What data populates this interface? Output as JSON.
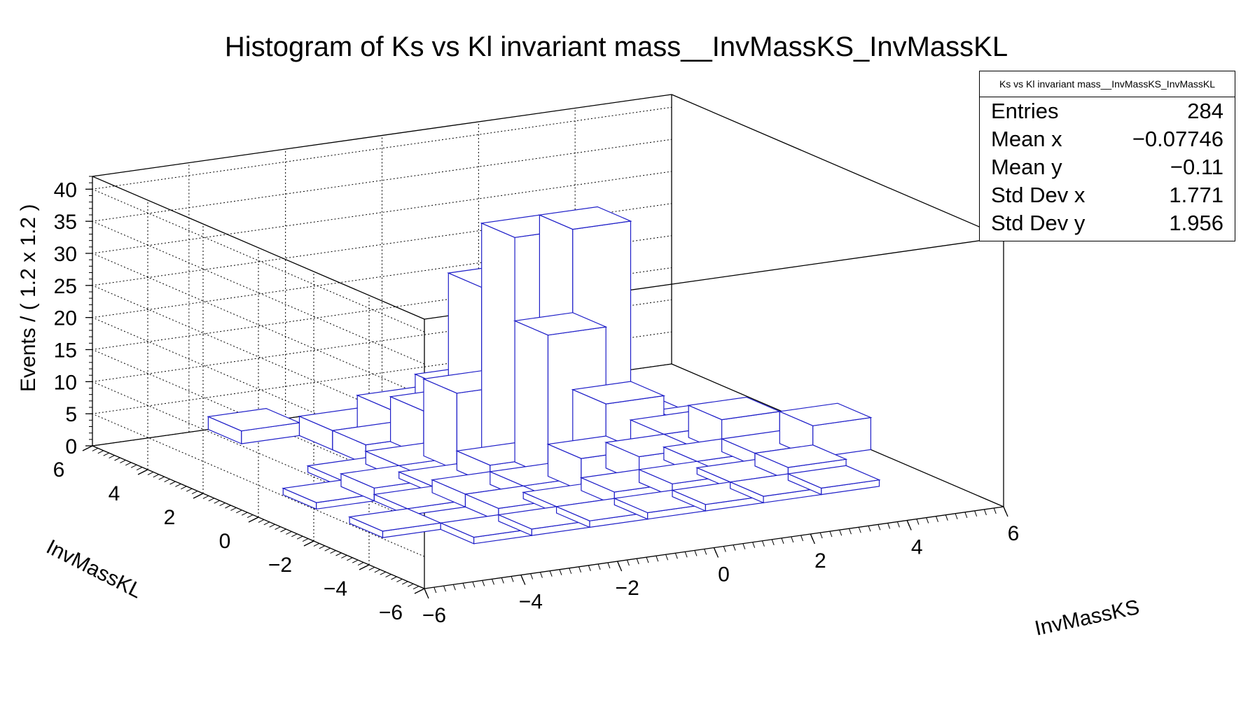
{
  "chart_data": {
    "type": "lego2d",
    "title": "Histogram of Ks vs Kl invariant mass__InvMassKS_InvMassKL",
    "xlabel": "InvMassKS",
    "ylabel": "InvMassKL",
    "zlabel": "Events / ( 1.2 x 1.2 )",
    "xlim": [
      -6,
      6
    ],
    "ylim": [
      -6,
      6
    ],
    "zlim": [
      0,
      42
    ],
    "x_ticks": [
      "−6",
      "−4",
      "−2",
      "0",
      "2",
      "4",
      "6"
    ],
    "y_ticks": [
      "−6",
      "−4",
      "−2",
      "0",
      "2",
      "4",
      "6"
    ],
    "z_ticks": [
      "0",
      "5",
      "10",
      "15",
      "20",
      "25",
      "30",
      "35",
      "40"
    ],
    "x_bin_edges": [
      -6,
      -4.8,
      -3.6,
      -2.4,
      -1.2,
      0,
      1.2,
      2.4,
      3.6,
      4.8,
      6
    ],
    "y_bin_edges": [
      -6,
      -4.8,
      -3.6,
      -2.4,
      -1.2,
      0,
      1.2,
      2.4,
      3.6,
      4.8,
      6
    ],
    "grid": true,
    "bar_color": "#1f1fc8",
    "bins": [
      {
        "x": -3.6,
        "y": 4.8,
        "z": 2
      },
      {
        "x": -2.4,
        "y": 3.6,
        "z": 3
      },
      {
        "x": -1.2,
        "y": 3.6,
        "z": 5
      },
      {
        "x": 0,
        "y": 3.6,
        "z": 7
      },
      {
        "x": 1.2,
        "y": 3.6,
        "z": 3
      },
      {
        "x": -2.4,
        "y": 2.4,
        "z": 3
      },
      {
        "x": -1.2,
        "y": 2.4,
        "z": 7
      },
      {
        "x": 0,
        "y": 2.4,
        "z": 25
      },
      {
        "x": 1.2,
        "y": 2.4,
        "z": 6
      },
      {
        "x": 2.4,
        "y": 2.4,
        "z": 3
      },
      {
        "x": -3.6,
        "y": 1.2,
        "z": 1
      },
      {
        "x": -2.4,
        "y": 1.2,
        "z": 2
      },
      {
        "x": -1.2,
        "y": 1.2,
        "z": 12
      },
      {
        "x": 0,
        "y": 1.2,
        "z": 35
      },
      {
        "x": 1.2,
        "y": 1.2,
        "z": 35
      },
      {
        "x": 2.4,
        "y": 1.2,
        "z": 4
      },
      {
        "x": 3.6,
        "y": 1.2,
        "z": 2
      },
      {
        "x": -4.8,
        "y": 0,
        "z": 1
      },
      {
        "x": -3.6,
        "y": 0,
        "z": 2
      },
      {
        "x": -2.4,
        "y": 0,
        "z": 1
      },
      {
        "x": -1.2,
        "y": 0,
        "z": 3
      },
      {
        "x": 0,
        "y": 0,
        "z": 22
      },
      {
        "x": 1.2,
        "y": 0,
        "z": 10
      },
      {
        "x": 2.4,
        "y": 0,
        "z": 4
      },
      {
        "x": 3.6,
        "y": 0,
        "z": 5
      },
      {
        "x": -3.6,
        "y": -1.2,
        "z": 1
      },
      {
        "x": -2.4,
        "y": -1.2,
        "z": 2
      },
      {
        "x": -1.2,
        "y": -1.2,
        "z": 2
      },
      {
        "x": 0,
        "y": -1.2,
        "z": 5
      },
      {
        "x": 1.2,
        "y": -1.2,
        "z": 4
      },
      {
        "x": 2.4,
        "y": -1.2,
        "z": 2
      },
      {
        "x": 3.6,
        "y": -1.2,
        "z": 2
      },
      {
        "x": 4.8,
        "y": -1.2,
        "z": 5
      },
      {
        "x": -4.8,
        "y": -2.4,
        "z": 1
      },
      {
        "x": -2.4,
        "y": -2.4,
        "z": 2
      },
      {
        "x": -1.2,
        "y": -2.4,
        "z": 1
      },
      {
        "x": 0,
        "y": -2.4,
        "z": 2
      },
      {
        "x": 1.2,
        "y": -2.4,
        "z": 2
      },
      {
        "x": 2.4,
        "y": -2.4,
        "z": 1
      },
      {
        "x": 3.6,
        "y": -2.4,
        "z": 2
      },
      {
        "x": -3.6,
        "y": -3.6,
        "z": 1
      },
      {
        "x": -2.4,
        "y": -3.6,
        "z": 1
      },
      {
        "x": -1.2,
        "y": -3.6,
        "z": 1
      },
      {
        "x": 0,
        "y": -3.6,
        "z": 1
      },
      {
        "x": 1.2,
        "y": -3.6,
        "z": 1
      },
      {
        "x": 2.4,
        "y": -3.6,
        "z": 1
      },
      {
        "x": 3.6,
        "y": -3.6,
        "z": 1
      }
    ]
  },
  "stats": {
    "name": "Ks vs Kl invariant mass__InvMassKS_InvMassKL",
    "rows": [
      {
        "label": "Entries",
        "value": "284"
      },
      {
        "label": "Mean x",
        "value": "−0.07746"
      },
      {
        "label": "Mean y",
        "value": "−0.11"
      },
      {
        "label": "Std Dev x",
        "value": "1.771"
      },
      {
        "label": "Std Dev y",
        "value": "1.956"
      }
    ]
  }
}
